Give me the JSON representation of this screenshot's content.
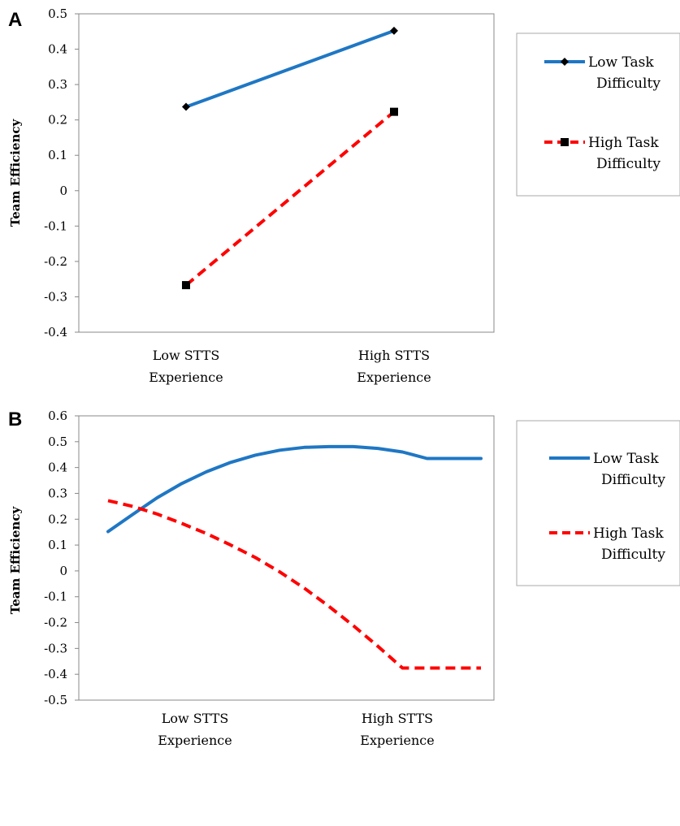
{
  "chart_data": [
    {
      "panel": "A",
      "type": "line",
      "ylabel": "Team Efficiency",
      "xlabel": "",
      "ylim": [
        -0.4,
        0.5
      ],
      "yticks": [
        "0.5",
        "0.4",
        "0.3",
        "0.2",
        "0.1",
        "0",
        "-0.1",
        "-0.2",
        "-0.3",
        "-0.4"
      ],
      "categories": [
        [
          "Low STTS",
          "Experience"
        ],
        [
          "High STTS",
          "Experience"
        ]
      ],
      "grid": false,
      "legend_position": "right",
      "series": [
        {
          "name": [
            "Low Task",
            "Difficulty"
          ],
          "color": "#1f77c4",
          "dash": "solid",
          "marker": "diamond",
          "values": [
            0.237,
            0.452
          ]
        },
        {
          "name": [
            "High Task",
            "Difficulty"
          ],
          "color": "#ff0000",
          "dash": "dashed",
          "marker": "square",
          "values": [
            -0.267,
            0.223
          ]
        }
      ]
    },
    {
      "panel": "B",
      "type": "line",
      "ylabel": "Team Efficiency",
      "xlabel": "",
      "ylim": [
        -0.5,
        0.6
      ],
      "yticks": [
        "0.6",
        "0.5",
        "0.4",
        "0.3",
        "0.2",
        "0.1",
        "0",
        "-0.1",
        "-0.2",
        "-0.3",
        "-0.4",
        "-0.5"
      ],
      "categories": [
        [
          "Low STTS",
          "Experience"
        ],
        [
          "High STTS",
          "Experience"
        ]
      ],
      "category_positions": [
        0.3,
        0.76
      ],
      "grid": false,
      "legend_position": "right",
      "series": [
        {
          "name": [
            "Low Task",
            "Difficulty"
          ],
          "color": "#1f77c4",
          "dash": "solid",
          "marker": "none",
          "x": [
            0,
            0.0658,
            0.1316,
            0.1974,
            0.2632,
            0.329,
            0.3947,
            0.4605,
            0.5263,
            0.5921,
            0.6579,
            0.7237,
            0.7895,
            0.8553,
            0.9211,
            1.0
          ],
          "values": [
            0.152,
            0.218,
            0.283,
            0.338,
            0.383,
            0.42,
            0.448,
            0.467,
            0.478,
            0.481,
            0.481,
            0.474,
            0.46,
            0.435,
            0.435,
            0.435
          ]
        },
        {
          "name": [
            "High Task",
            "Difficulty"
          ],
          "color": "#ff0000",
          "dash": "dashed",
          "marker": "none",
          "x": [
            0,
            0.0658,
            0.1316,
            0.1974,
            0.2632,
            0.329,
            0.3947,
            0.4605,
            0.5263,
            0.5921,
            0.6579,
            0.7237,
            0.7895,
            0.8553,
            0.9211,
            1.0
          ],
          "values": [
            0.272,
            0.25,
            0.22,
            0.184,
            0.145,
            0.1,
            0.052,
            -0.004,
            -0.067,
            -0.137,
            -0.212,
            -0.292,
            -0.376,
            -0.376,
            -0.376,
            -0.376
          ]
        }
      ]
    }
  ]
}
